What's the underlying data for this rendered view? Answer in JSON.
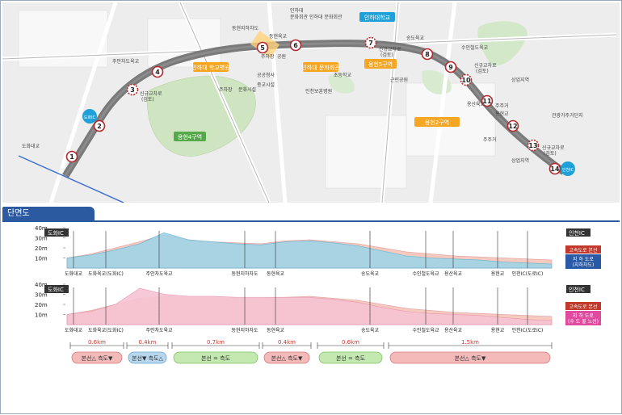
{
  "map": {
    "places": [
      {
        "id": "inha-univ",
        "label": "인하대학교"
      },
      {
        "id": "inha-univ-hospital",
        "label": "인하대\n학교병원"
      },
      {
        "id": "inha-univ-museum",
        "label": "인하대\n문화회관"
      },
      {
        "id": "yuhyeon5",
        "label": "용현5구역"
      },
      {
        "id": "yuhyeon4",
        "label": "용현4구역"
      },
      {
        "id": "yuhyeon2",
        "label": "용현2구역"
      },
      {
        "id": "suyeong-park",
        "label": "수봉공원"
      },
      {
        "id": "gwangye",
        "label": "관광가주거단지"
      },
      {
        "id": "sangeop1",
        "label": "상업지역"
      },
      {
        "id": "sangeop2",
        "label": "상업지역"
      },
      {
        "id": "jugeo1",
        "label": "주주거"
      },
      {
        "id": "jugeo2",
        "label": "주주거"
      },
      {
        "id": "jugeo3",
        "label": "주주거"
      },
      {
        "id": "ic-dohwa",
        "label": "도화IC"
      },
      {
        "id": "ic-incheon",
        "label": "인천IC"
      }
    ],
    "roads": [
      "도화대교",
      "주안지하차도",
      "동현지하차도",
      "동현육교",
      "송도육교",
      "수인철도육교",
      "용산육교",
      "용현교",
      "인천IC",
      "신규교차로(검토)",
      "신규교차로(검토)",
      "신규교차로(검토)"
    ],
    "small_labels": [
      "주차장",
      "공원",
      "초등학교",
      "(계획)",
      "근린공원",
      "(계획)",
      "주차장",
      "문화시설",
      "공공청사",
      "종교시설",
      "인천보훈병원",
      "여자고등학교",
      "교통육교",
      "인하대역"
    ],
    "nodes": [
      "1",
      "2",
      "3",
      "4",
      "5",
      "6",
      "7",
      "8",
      "9",
      "10",
      "11",
      "12",
      "13",
      "14"
    ]
  },
  "profile": {
    "title": "단면도",
    "y_ticks": [
      "40m",
      "30m",
      "20m",
      "10m"
    ],
    "panels": [
      {
        "id": "top",
        "start_label": "도화IC",
        "end_label": "인천IC",
        "legend": [
          "고속도로 본선",
          "지 하 도로\n(지하차도)"
        ],
        "stations": [
          "도화대교",
          "도화육교(도화IC)",
          "주안차도육교",
          "동현지하차도",
          "동현육교",
          "송도육교",
          "수인철도육교",
          "용산육교",
          "용현교",
          "인천IC(도로IC)"
        ]
      },
      {
        "id": "bottom",
        "start_label": "도화IC",
        "end_label": "인천IC",
        "legend": [
          "고속도로 본선",
          "지 하 도로\n(수 도 물 노선)"
        ],
        "stations": [
          "도화대교",
          "도화육교(도화IC)",
          "주안차도육교",
          "동현지하차도",
          "동현육교",
          "송도육교",
          "수인철도육교",
          "용산육교",
          "용현교",
          "인천IC(도로IC)"
        ]
      }
    ],
    "segments": [
      {
        "dist": "0.6km",
        "label": "본선△ 측도▼",
        "style": "pink"
      },
      {
        "dist": "0.4km",
        "label": "본선▼ 측도△",
        "style": "blue"
      },
      {
        "dist": "0.7km",
        "label": "본선 = 측도",
        "style": "green"
      },
      {
        "dist": "0.4km",
        "label": "본선△ 측도▼",
        "style": "pink"
      },
      {
        "dist": "0.6km",
        "label": "본선 = 측도",
        "style": "green"
      },
      {
        "dist": "1.5km",
        "label": "본선△ 측도▼",
        "style": "pink"
      }
    ],
    "chart_data": [
      {
        "type": "area",
        "title": "",
        "ylabel": "",
        "ylim": [
          0,
          40
        ],
        "series": [
          {
            "name": "고속도로 본선",
            "x": [
              0,
              0.5,
              1,
              1.5,
              2,
              2.5,
              3,
              3.5,
              4,
              4.5,
              5,
              5.5,
              6,
              6.5,
              7,
              7.5,
              8,
              8.5,
              9,
              9.5,
              10
            ],
            "values": [
              10,
              14,
              20,
              26,
              33,
              28,
              26,
              25,
              24,
              27,
              28,
              26,
              24,
              20,
              16,
              14,
              12,
              11,
              10,
              9,
              8
            ]
          },
          {
            "name": "지하차도",
            "x": [
              0,
              0.5,
              1,
              1.5,
              2,
              2.5,
              3,
              3.5,
              4,
              4.5,
              5,
              5.5,
              6,
              6.5,
              7,
              7.5,
              8,
              8.5,
              9,
              9.5,
              10
            ],
            "values": [
              10,
              13,
              18,
              24,
              35,
              28,
              26,
              24,
              23,
              26,
              27,
              25,
              22,
              17,
              12,
              10,
              9,
              8,
              6,
              5,
              4
            ]
          }
        ]
      },
      {
        "type": "area",
        "title": "",
        "ylabel": "",
        "ylim": [
          0,
          40
        ],
        "series": [
          {
            "name": "고속도로 본선",
            "x": [
              0,
              0.5,
              1,
              1.5,
              2,
              2.5,
              3,
              3.5,
              4,
              4.5,
              5,
              5.5,
              6,
              6.5,
              7,
              7.5,
              8,
              8.5,
              9,
              9.5,
              10
            ],
            "values": [
              10,
              14,
              20,
              26,
              28,
              27,
              27,
              26,
              26,
              27,
              28,
              26,
              24,
              20,
              16,
              14,
              12,
              11,
              10,
              9,
              8
            ]
          },
          {
            "name": "수도물 노선",
            "x": [
              0,
              0.5,
              1,
              1.5,
              2,
              2.5,
              3,
              3.5,
              4,
              4.5,
              5,
              5.5,
              6,
              6.5,
              7,
              7.5,
              8,
              8.5,
              9,
              9.5,
              10
            ],
            "values": [
              10,
              13,
              20,
              36,
              30,
              28,
              28,
              27,
              27,
              27,
              27,
              25,
              22,
              17,
              13,
              11,
              10,
              9,
              7,
              5,
              4
            ]
          }
        ]
      }
    ]
  },
  "colors": {
    "primary_line": "#7b1f1f",
    "secondary": "#d9b199",
    "blue_area": "#4bc1df",
    "pink_area": "#f3a6c6",
    "peach": "#f4c4b6",
    "green": "#b8e3a6",
    "blue_seg": "#a6cde6",
    "pink_seg": "#f4b9b9"
  }
}
